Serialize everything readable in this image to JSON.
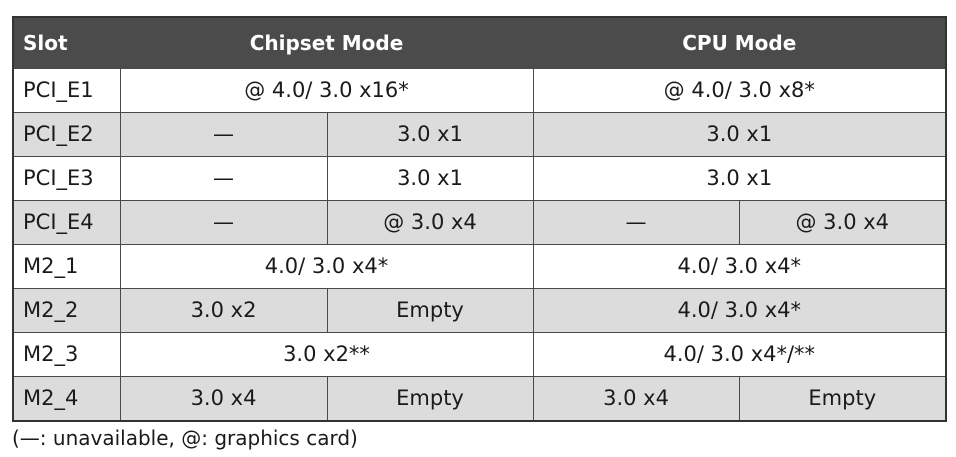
{
  "header": {
    "slot": "Slot",
    "chipset": "Chipset Mode",
    "cpu": "CPU Mode"
  },
  "rows": {
    "pcie1": {
      "slot": "PCI_E1",
      "chipset": "@ 4.0/ 3.0 x16*",
      "cpu": "@ 4.0/ 3.0 x8*"
    },
    "pcie2": {
      "slot": "PCI_E2",
      "chipset_a": "—",
      "chipset_b": "3.0 x1",
      "cpu": "3.0 x1"
    },
    "pcie3": {
      "slot": "PCI_E3",
      "chipset_a": "—",
      "chipset_b": "3.0 x1",
      "cpu": "3.0 x1"
    },
    "pcie4": {
      "slot": "PCI_E4",
      "chipset_a": "—",
      "chipset_b": "@ 3.0 x4",
      "cpu_a": "—",
      "cpu_b": "@ 3.0 x4"
    },
    "m2_1": {
      "slot": "M2_1",
      "chipset": "4.0/ 3.0 x4*",
      "cpu": "4.0/ 3.0 x4*"
    },
    "m2_2": {
      "slot": "M2_2",
      "chipset_a": "3.0 x2",
      "chipset_b": "Empty",
      "cpu": "4.0/ 3.0 x4*"
    },
    "m2_3": {
      "slot": "M2_3",
      "chipset": "3.0 x2**",
      "cpu": "4.0/ 3.0 x4*/**"
    },
    "m2_4": {
      "slot": "M2_4",
      "chipset_a": "3.0 x4",
      "chipset_b": "Empty",
      "cpu_a": "3.0 x4",
      "cpu_b": "Empty"
    }
  },
  "legend": "(—: unavailable, @: graphics card)"
}
